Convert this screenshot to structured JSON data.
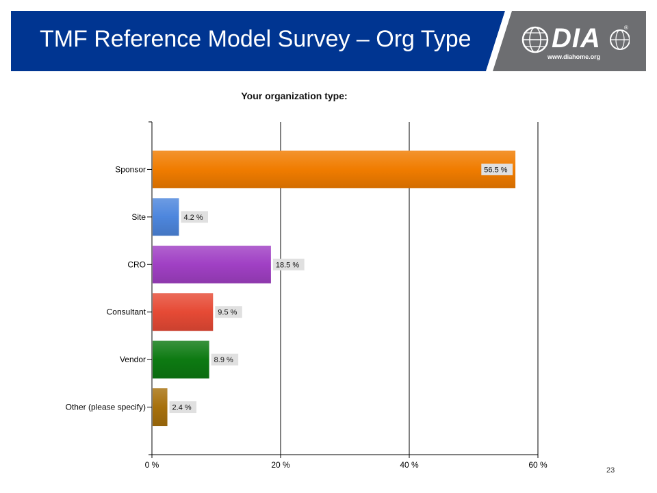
{
  "slide": {
    "title": "TMF Reference Model Survey – Org Type",
    "page_number": "23",
    "logo": {
      "text": "DIA",
      "url": "www.diahome.org",
      "registered_mark": "®"
    },
    "colors": {
      "header_blue": "#003591",
      "header_gray": "#6d6e71",
      "header_stripe": "#ffffff"
    }
  },
  "chart_data": {
    "type": "bar",
    "orientation": "horizontal",
    "title": "Your organization type:",
    "xlabel": "",
    "ylabel": "",
    "categories": [
      "Sponsor",
      "Site",
      "CRO",
      "Consultant",
      "Vendor",
      "Other (please specify)"
    ],
    "values": [
      56.5,
      4.2,
      18.5,
      9.5,
      8.9,
      2.4
    ],
    "value_labels": [
      "56.5 %",
      "4.2 %",
      "18.5 %",
      "9.5 %",
      "8.9 %",
      "2.4 %"
    ],
    "colors": [
      "#f07c00",
      "#4d86dd",
      "#a040c4",
      "#e64a35",
      "#0d7a12",
      "#a7700c"
    ],
    "xlim": [
      0,
      60
    ],
    "x_ticks": [
      0,
      20,
      40,
      60
    ],
    "x_tick_labels": [
      "0 %",
      "20 %",
      "40 %",
      "60 %"
    ],
    "grid": true,
    "legend": "none"
  }
}
